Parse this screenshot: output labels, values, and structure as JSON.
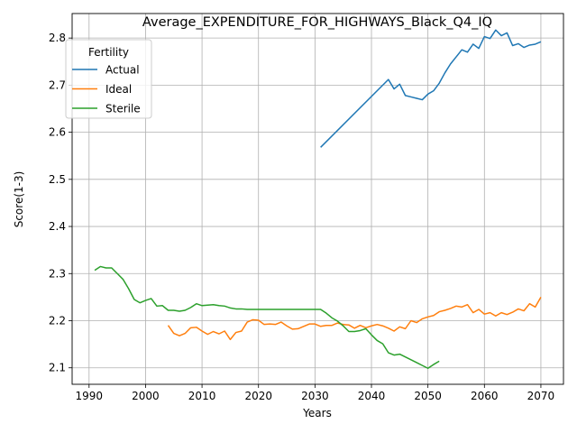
{
  "chart_data": {
    "type": "line",
    "title": "Average_EXPENDITURE_FOR_HIGHWAYS_Black_Q4_IQ",
    "xlabel": "Years",
    "ylabel": "Score(1-3)",
    "xlim": [
      1987,
      2074
    ],
    "ylim": [
      2.065,
      2.852
    ],
    "xticks": [
      1990,
      2000,
      2010,
      2020,
      2030,
      2040,
      2050,
      2060,
      2070
    ],
    "yticks": [
      2.1,
      2.2,
      2.3,
      2.4,
      2.5,
      2.6,
      2.7,
      2.8
    ],
    "ytick_labels": [
      "2.1",
      "2.2",
      "2.3",
      "2.4",
      "2.5",
      "2.6",
      "2.7",
      "2.8"
    ],
    "grid": true,
    "legend": {
      "title": "Fertility",
      "position": "upper-left"
    },
    "series": [
      {
        "name": "Actual",
        "color": "#1f77b4",
        "x": [
          2031,
          2043,
          2044,
          2045,
          2046,
          2047,
          2048,
          2049,
          2050,
          2051,
          2052,
          2053,
          2054,
          2055,
          2056,
          2057,
          2058,
          2059,
          2060,
          2061,
          2062,
          2063,
          2064,
          2065,
          2066,
          2067,
          2068,
          2069,
          2070
        ],
        "values": [
          2.568,
          2.712,
          2.692,
          2.702,
          2.678,
          2.675,
          2.672,
          2.669,
          2.681,
          2.688,
          2.704,
          2.726,
          2.745,
          2.76,
          2.775,
          2.77,
          2.787,
          2.778,
          2.803,
          2.799,
          2.817,
          2.805,
          2.811,
          2.784,
          2.788,
          2.78,
          2.785,
          2.787,
          2.792
        ]
      },
      {
        "name": "Ideal",
        "color": "#ff7f0e",
        "x": [
          2004,
          2005,
          2006,
          2007,
          2008,
          2009,
          2010,
          2011,
          2012,
          2013,
          2014,
          2015,
          2016,
          2017,
          2018,
          2019,
          2020,
          2021,
          2022,
          2023,
          2024,
          2025,
          2026,
          2027,
          2028,
          2029,
          2030,
          2031,
          2032,
          2033,
          2034,
          2035,
          2036,
          2037,
          2038,
          2039,
          2040,
          2041,
          2042,
          2043,
          2044,
          2045,
          2046,
          2047,
          2048,
          2049,
          2050,
          2051,
          2052,
          2053,
          2054,
          2055,
          2056,
          2057,
          2058,
          2059,
          2060,
          2061,
          2062,
          2063,
          2064,
          2065,
          2066,
          2067,
          2068,
          2069,
          2070
        ],
        "values": [
          2.19,
          2.173,
          2.168,
          2.173,
          2.185,
          2.186,
          2.178,
          2.171,
          2.177,
          2.172,
          2.178,
          2.16,
          2.175,
          2.178,
          2.197,
          2.202,
          2.201,
          2.192,
          2.193,
          2.192,
          2.197,
          2.189,
          2.182,
          2.183,
          2.188,
          2.193,
          2.193,
          2.188,
          2.19,
          2.19,
          2.195,
          2.192,
          2.191,
          2.184,
          2.19,
          2.185,
          2.189,
          2.192,
          2.189,
          2.184,
          2.178,
          2.187,
          2.183,
          2.2,
          2.196,
          2.204,
          2.208,
          2.211,
          2.219,
          2.222,
          2.226,
          2.231,
          2.229,
          2.234,
          2.217,
          2.224,
          2.214,
          2.217,
          2.21,
          2.217,
          2.213,
          2.218,
          2.225,
          2.221,
          2.236,
          2.229,
          2.25
        ]
      },
      {
        "name": "Sterile",
        "color": "#2ca02c",
        "x": [
          1991,
          1992,
          1993,
          1994,
          1995,
          1996,
          1997,
          1998,
          1999,
          2000,
          2001,
          2002,
          2003,
          2004,
          2005,
          2006,
          2007,
          2008,
          2009,
          2010,
          2011,
          2012,
          2013,
          2014,
          2015,
          2016,
          2017,
          2018,
          2019,
          2020,
          2021,
          2022,
          2023,
          2024,
          2025,
          2026,
          2027,
          2028,
          2029,
          2030,
          2031,
          2032,
          2033,
          2034,
          2035,
          2036,
          2037,
          2038,
          2039,
          2040,
          2041,
          2042,
          2043,
          2044,
          2045,
          2046,
          2047,
          2048,
          2049,
          2050,
          2051,
          2052
        ],
        "values": [
          2.307,
          2.315,
          2.312,
          2.312,
          2.3,
          2.288,
          2.268,
          2.245,
          2.238,
          2.243,
          2.247,
          2.231,
          2.232,
          2.222,
          2.222,
          2.22,
          2.222,
          2.228,
          2.236,
          2.232,
          2.233,
          2.234,
          2.232,
          2.231,
          2.227,
          2.225,
          2.225,
          2.224,
          2.224,
          2.224,
          2.224,
          2.224,
          2.224,
          2.224,
          2.224,
          2.224,
          2.224,
          2.224,
          2.224,
          2.224,
          2.224,
          2.216,
          2.206,
          2.199,
          2.189,
          2.177,
          2.177,
          2.179,
          2.183,
          2.17,
          2.158,
          2.151,
          2.132,
          2.127,
          2.129,
          2.123,
          2.117,
          2.111,
          2.105,
          2.099,
          2.107,
          2.114
        ]
      }
    ]
  }
}
